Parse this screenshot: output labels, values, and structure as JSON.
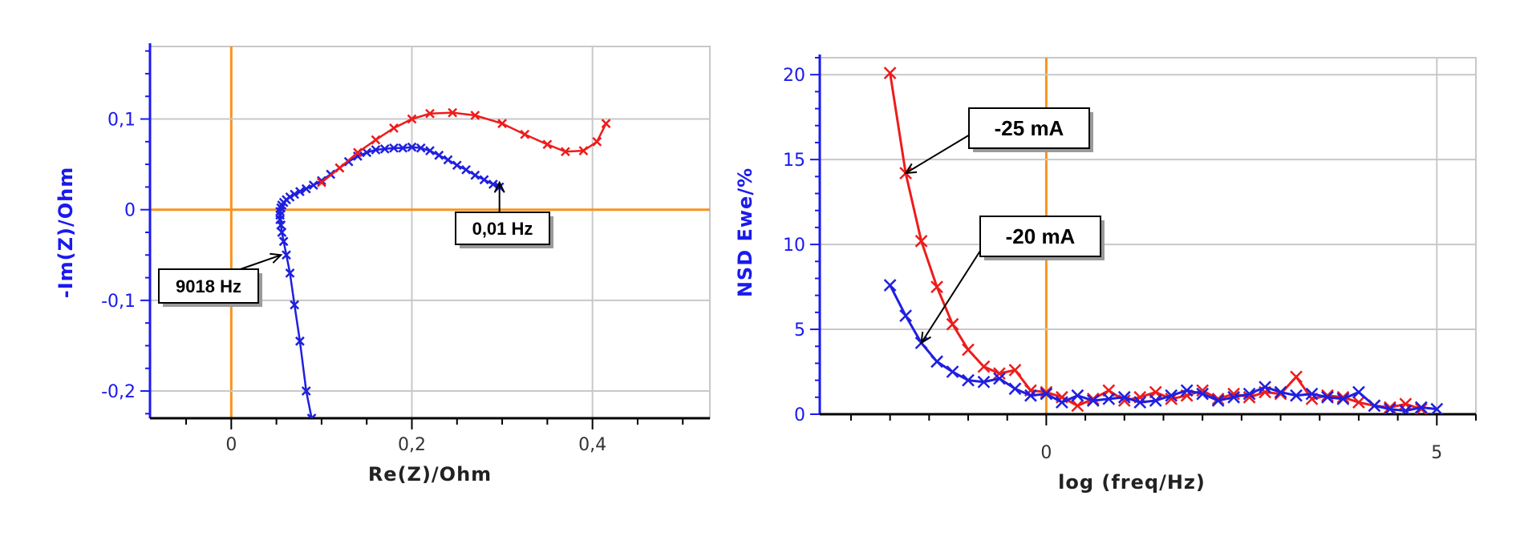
{
  "colors": {
    "axis_blue": "#1a1aee",
    "red_series": "#ee1c1c",
    "blue_series": "#1f1fe0",
    "grid": "#c8c8c8",
    "origin_lines": "#f7941d",
    "text": "#000000"
  },
  "chart_data": [
    {
      "type": "line",
      "title": "",
      "xlabel": "Re(Z)/Ohm",
      "ylabel": "-Im(Z)/Ohm",
      "xlim": [
        -0.09,
        0.53
      ],
      "ylim": [
        -0.23,
        0.18
      ],
      "x_ticks": [
        0,
        0.2,
        0.4
      ],
      "x_tick_labels": [
        "0",
        "0,2",
        "0,4"
      ],
      "y_ticks": [
        -0.2,
        -0.1,
        0,
        0.1
      ],
      "y_tick_labels": [
        "-0,2",
        "-0,1",
        "0",
        "0,1"
      ],
      "grid": true,
      "series": [
        {
          "color": "#1f1fe0",
          "marker": "x",
          "x": [
            0.089,
            0.083,
            0.076,
            0.07,
            0.065,
            0.061,
            0.058,
            0.056,
            0.055,
            0.054,
            0.054,
            0.054,
            0.055,
            0.056,
            0.058,
            0.061,
            0.065,
            0.07,
            0.076,
            0.083,
            0.091,
            0.1,
            0.11,
            0.12,
            0.13,
            0.14,
            0.15,
            0.16,
            0.17,
            0.18,
            0.19,
            0.2,
            0.21,
            0.22,
            0.23,
            0.24,
            0.25,
            0.26,
            0.27,
            0.28,
            0.29,
            0.297
          ],
          "y": [
            -0.23,
            -0.2,
            -0.145,
            -0.105,
            -0.07,
            -0.05,
            -0.035,
            -0.025,
            -0.017,
            -0.011,
            -0.006,
            -0.002,
            0.002,
            0.005,
            0.008,
            0.011,
            0.014,
            0.017,
            0.02,
            0.023,
            0.027,
            0.032,
            0.039,
            0.046,
            0.053,
            0.059,
            0.063,
            0.066,
            0.067,
            0.068,
            0.068,
            0.069,
            0.068,
            0.065,
            0.06,
            0.055,
            0.049,
            0.044,
            0.038,
            0.033,
            0.028,
            0.025
          ]
        },
        {
          "color": "#ee1c1c",
          "marker": "x",
          "x": [
            0.1,
            0.12,
            0.14,
            0.16,
            0.18,
            0.2,
            0.22,
            0.245,
            0.27,
            0.3,
            0.325,
            0.35,
            0.37,
            0.39,
            0.405,
            0.415
          ],
          "y": [
            0.03,
            0.046,
            0.063,
            0.077,
            0.09,
            0.1,
            0.106,
            0.107,
            0.104,
            0.095,
            0.083,
            0.072,
            0.064,
            0.065,
            0.075,
            0.095
          ]
        }
      ],
      "annotations": [
        {
          "text": "9018 Hz",
          "x": 0.055,
          "y": -0.05
        },
        {
          "text": "0,01 Hz",
          "x": 0.297,
          "y": 0.03
        }
      ]
    },
    {
      "type": "line",
      "title": "",
      "xlabel": "log (freq/Hz)",
      "ylabel": "NSD Ewe/%",
      "xlim": [
        -2.9,
        5.5
      ],
      "ylim": [
        0,
        21
      ],
      "x_ticks": [
        0,
        5
      ],
      "x_tick_labels": [
        "0",
        "5"
      ],
      "y_ticks": [
        0,
        5,
        10,
        15,
        20
      ],
      "y_tick_labels": [
        "0",
        "5",
        "10",
        "15",
        "20"
      ],
      "grid": true,
      "series": [
        {
          "name": "-25 mA",
          "color": "#ee1c1c",
          "marker": "x",
          "x": [
            -2.0,
            -1.8,
            -1.6,
            -1.4,
            -1.2,
            -1.0,
            -0.8,
            -0.6,
            -0.4,
            -0.2,
            0.0,
            0.2,
            0.4,
            0.6,
            0.8,
            1.0,
            1.2,
            1.4,
            1.6,
            1.8,
            2.0,
            2.2,
            2.4,
            2.6,
            2.8,
            3.0,
            3.2,
            3.4,
            3.6,
            3.8,
            4.0,
            4.2,
            4.4,
            4.6,
            4.8
          ],
          "y": [
            20.1,
            14.2,
            10.2,
            7.5,
            5.3,
            3.8,
            2.8,
            2.4,
            2.6,
            1.4,
            1.3,
            1.0,
            0.5,
            0.9,
            1.4,
            0.8,
            1.0,
            1.3,
            0.9,
            1.1,
            1.4,
            0.9,
            1.2,
            1.0,
            1.3,
            1.2,
            2.2,
            0.9,
            1.1,
            1.0,
            0.7,
            0.5,
            0.4,
            0.6,
            0.3
          ]
        },
        {
          "name": "-20 mA",
          "color": "#1f1fe0",
          "marker": "x",
          "x": [
            -2.0,
            -1.8,
            -1.6,
            -1.4,
            -1.2,
            -1.0,
            -0.8,
            -0.6,
            -0.4,
            -0.2,
            0.0,
            0.2,
            0.4,
            0.6,
            0.8,
            1.0,
            1.2,
            1.4,
            1.6,
            1.8,
            2.0,
            2.2,
            2.4,
            2.6,
            2.8,
            3.0,
            3.2,
            3.4,
            3.6,
            3.8,
            4.0,
            4.2,
            4.4,
            4.6,
            4.8,
            5.0
          ],
          "y": [
            7.6,
            5.8,
            4.2,
            3.1,
            2.5,
            2.0,
            1.9,
            2.1,
            1.5,
            1.1,
            1.2,
            0.7,
            1.1,
            0.8,
            0.9,
            1.0,
            0.7,
            0.8,
            1.1,
            1.4,
            1.2,
            0.8,
            1.0,
            1.2,
            1.6,
            1.3,
            1.1,
            1.2,
            1.0,
            0.9,
            1.3,
            0.5,
            0.3,
            0.2,
            0.4,
            0.3
          ]
        }
      ],
      "annotations": [
        {
          "text": "-25 mA",
          "x": -1.8,
          "y": 14.2
        },
        {
          "text": "-20 mA",
          "x": -1.6,
          "y": 4.2
        }
      ]
    }
  ]
}
